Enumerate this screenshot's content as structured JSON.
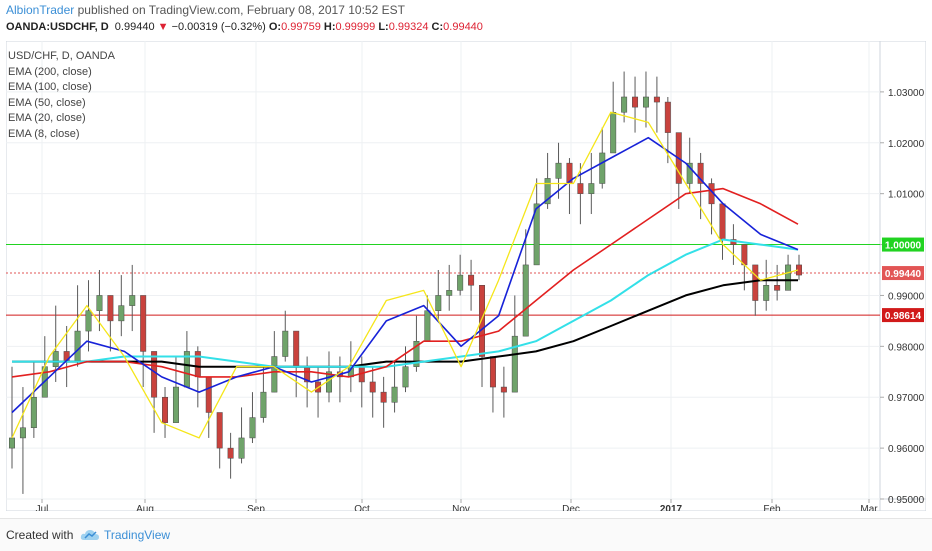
{
  "header": {
    "author": "AlbionTrader",
    "published_text": " published on TradingView.com, February 08, 2017 10:52 EST",
    "symbol": "OANDA:USDCHF, D",
    "last": "0.99440",
    "change_arrow": "▼",
    "change": "−0.00319 (−0.32%)",
    "o_label": "O:",
    "o_value": "0.99759",
    "h_label": "H:",
    "h_value": "0.99999",
    "l_label": "L:",
    "l_value": "0.99324",
    "c_label": "C:",
    "c_value": "0.99440"
  },
  "legend": {
    "title": "USD/CHF, D, OANDA",
    "items": [
      "EMA (200, close)",
      "EMA (100, close)",
      "EMA (50, close)",
      "EMA (20, close)",
      "EMA (8, close)"
    ]
  },
  "footer": {
    "created": "Created with",
    "brand": "TradingView",
    "brand_icon": "tradingview-cloud-icon"
  },
  "colors": {
    "up": "#6fa36a",
    "down": "#c9423d",
    "ema200": "#000000",
    "ema100": "#33e0e8",
    "ema50": "#e22020",
    "ema20": "#1722d8",
    "ema8": "#f5e61a",
    "hline_green": "#21d321",
    "hline_red": "#d11a1a",
    "price_dotted": "#e25555"
  },
  "chart_data": {
    "type": "candlestick",
    "title": "USD/CHF, D, OANDA",
    "ylim": [
      0.95,
      1.04
    ],
    "y_ticks": [
      "1.03000",
      "1.02000",
      "1.01000",
      "1.00000",
      "0.99000",
      "0.98000",
      "0.97000",
      "0.96000",
      "0.95000"
    ],
    "x_ticks": [
      "Jul",
      "Aug",
      "Sep",
      "Oct",
      "Nov",
      "Dec",
      "2017",
      "Feb",
      "Mar"
    ],
    "price_labels": [
      {
        "value": 1.0,
        "text": "1.00000",
        "color": "#21d321"
      },
      {
        "value": 0.9944,
        "text": "0.99440",
        "color": "#e25555"
      },
      {
        "value": 0.98614,
        "text": "0.98614",
        "color": "#d11a1a"
      }
    ],
    "hlines": [
      {
        "value": 1.0,
        "color": "#21d321",
        "style": "solid"
      },
      {
        "value": 0.9944,
        "color": "#e25555",
        "style": "dotted"
      },
      {
        "value": 0.98614,
        "color": "#d11a1a",
        "style": "solid"
      }
    ],
    "series_keypoints": [
      {
        "name": "Price",
        "points": [
          [
            0.962,
            0.956,
            0.976
          ],
          [
            0.964,
            0.951,
            0.972
          ],
          [
            0.97,
            0.962,
            0.977
          ],
          [
            0.976,
            0.97,
            0.982
          ],
          [
            0.979,
            0.973,
            0.988
          ],
          [
            0.977,
            0.972,
            0.984
          ],
          [
            0.983,
            0.976,
            0.992
          ],
          [
            0.987,
            0.979,
            0.993
          ],
          [
            0.99,
            0.983,
            0.995
          ],
          [
            0.985,
            0.979,
            0.99
          ],
          [
            0.988,
            0.982,
            0.994
          ],
          [
            0.99,
            0.983,
            0.996
          ],
          [
            0.979,
            0.972,
            0.985
          ],
          [
            0.97,
            0.963,
            0.977
          ],
          [
            0.965,
            0.962,
            0.972
          ],
          [
            0.972,
            0.965,
            0.978
          ],
          [
            0.979,
            0.972,
            0.983
          ],
          [
            0.974,
            0.968,
            0.98
          ],
          [
            0.967,
            0.962,
            0.973
          ],
          [
            0.96,
            0.956,
            0.967
          ],
          [
            0.958,
            0.954,
            0.963
          ],
          [
            0.962,
            0.957,
            0.968
          ],
          [
            0.966,
            0.961,
            0.971
          ],
          [
            0.971,
            0.965,
            0.976
          ],
          [
            0.978,
            0.971,
            0.983
          ],
          [
            0.983,
            0.977,
            0.987
          ],
          [
            0.976,
            0.97,
            0.981
          ],
          [
            0.973,
            0.968,
            0.978
          ],
          [
            0.971,
            0.966,
            0.976
          ],
          [
            0.975,
            0.969,
            0.979
          ],
          [
            0.974,
            0.969,
            0.978
          ],
          [
            0.976,
            0.971,
            0.981
          ],
          [
            0.973,
            0.968,
            0.978
          ],
          [
            0.971,
            0.966,
            0.976
          ],
          [
            0.969,
            0.964,
            0.974
          ],
          [
            0.972,
            0.967,
            0.977
          ],
          [
            0.976,
            0.971,
            0.98
          ],
          [
            0.981,
            0.975,
            0.986
          ],
          [
            0.987,
            0.981,
            0.99
          ],
          [
            0.99,
            0.985,
            0.995
          ],
          [
            0.991,
            0.987,
            0.996
          ],
          [
            0.994,
            0.99,
            0.998
          ],
          [
            0.992,
            0.987,
            0.997
          ],
          [
            0.978,
            0.972,
            0.984
          ],
          [
            0.972,
            0.967,
            0.978
          ],
          [
            0.971,
            0.966,
            0.976
          ],
          [
            0.982,
            0.975,
            0.99
          ],
          [
            0.996,
            0.988,
            1.003
          ],
          [
            1.008,
            1.0,
            1.013
          ],
          [
            1.013,
            1.007,
            1.018
          ],
          [
            1.016,
            1.009,
            1.02
          ],
          [
            1.012,
            1.006,
            1.017
          ],
          [
            1.01,
            1.004,
            1.016
          ],
          [
            1.012,
            1.006,
            1.018
          ],
          [
            1.018,
            1.011,
            1.023
          ],
          [
            1.026,
            1.019,
            1.032
          ],
          [
            1.029,
            1.024,
            1.034
          ],
          [
            1.027,
            1.022,
            1.033
          ],
          [
            1.029,
            1.023,
            1.034
          ],
          [
            1.028,
            1.022,
            1.033
          ],
          [
            1.022,
            1.016,
            1.029
          ],
          [
            1.012,
            1.007,
            1.018
          ],
          [
            1.016,
            1.01,
            1.021
          ],
          [
            1.012,
            1.005,
            1.018
          ],
          [
            1.008,
            1.002,
            1.013
          ],
          [
            1.001,
            0.997,
            1.006
          ],
          [
            1.0,
            0.996,
            1.004
          ],
          [
            0.996,
            0.991,
            1.0
          ],
          [
            0.989,
            0.986,
            0.994
          ],
          [
            0.992,
            0.987,
            0.997
          ],
          [
            0.991,
            0.989,
            0.996
          ],
          [
            0.996,
            0.991,
            0.998
          ],
          [
            0.994,
            0.993,
            0.998
          ]
        ]
      },
      {
        "name": "EMA (200, close)",
        "points": [
          0.977,
          0.977,
          0.977,
          0.977,
          0.977,
          0.976,
          0.976,
          0.976,
          0.976,
          0.976,
          0.977,
          0.977,
          0.977,
          0.978,
          0.979,
          0.981,
          0.984,
          0.987,
          0.99,
          0.992,
          0.993,
          0.993
        ]
      },
      {
        "name": "EMA (100, close)",
        "points": [
          0.977,
          0.977,
          0.977,
          0.978,
          0.978,
          0.978,
          0.977,
          0.976,
          0.976,
          0.976,
          0.976,
          0.977,
          0.978,
          0.979,
          0.981,
          0.985,
          0.989,
          0.994,
          0.998,
          1.001,
          1.0,
          0.999
        ]
      },
      {
        "name": "EMA (50, close)",
        "points": [
          0.974,
          0.975,
          0.977,
          0.977,
          0.976,
          0.974,
          0.974,
          0.975,
          0.975,
          0.974,
          0.976,
          0.981,
          0.981,
          0.983,
          0.989,
          0.995,
          1.0,
          1.005,
          1.01,
          1.011,
          1.008,
          1.004
        ]
      },
      {
        "name": "EMA (20, close)",
        "points": [
          0.967,
          0.974,
          0.981,
          0.979,
          0.974,
          0.971,
          0.974,
          0.976,
          0.973,
          0.975,
          0.985,
          0.988,
          0.98,
          0.986,
          1.007,
          1.013,
          1.017,
          1.021,
          1.016,
          1.008,
          1.002,
          0.999
        ]
      },
      {
        "name": "EMA (8, close)",
        "points": [
          0.962,
          0.978,
          0.988,
          0.978,
          0.965,
          0.962,
          0.976,
          0.976,
          0.971,
          0.976,
          0.989,
          0.991,
          0.976,
          0.993,
          1.012,
          1.012,
          1.026,
          1.024,
          1.012,
          1.0,
          0.993,
          0.995
        ]
      }
    ],
    "series": [
      {
        "name": "EMA (200, close)",
        "color": "#000000"
      },
      {
        "name": "EMA (100, close)",
        "color": "#33e0e8"
      },
      {
        "name": "EMA (50, close)",
        "color": "#e22020"
      },
      {
        "name": "EMA (20, close)",
        "color": "#1722d8"
      },
      {
        "name": "EMA (8, close)",
        "color": "#f5e61a"
      }
    ],
    "legend_position": "top-left",
    "grid": true
  }
}
